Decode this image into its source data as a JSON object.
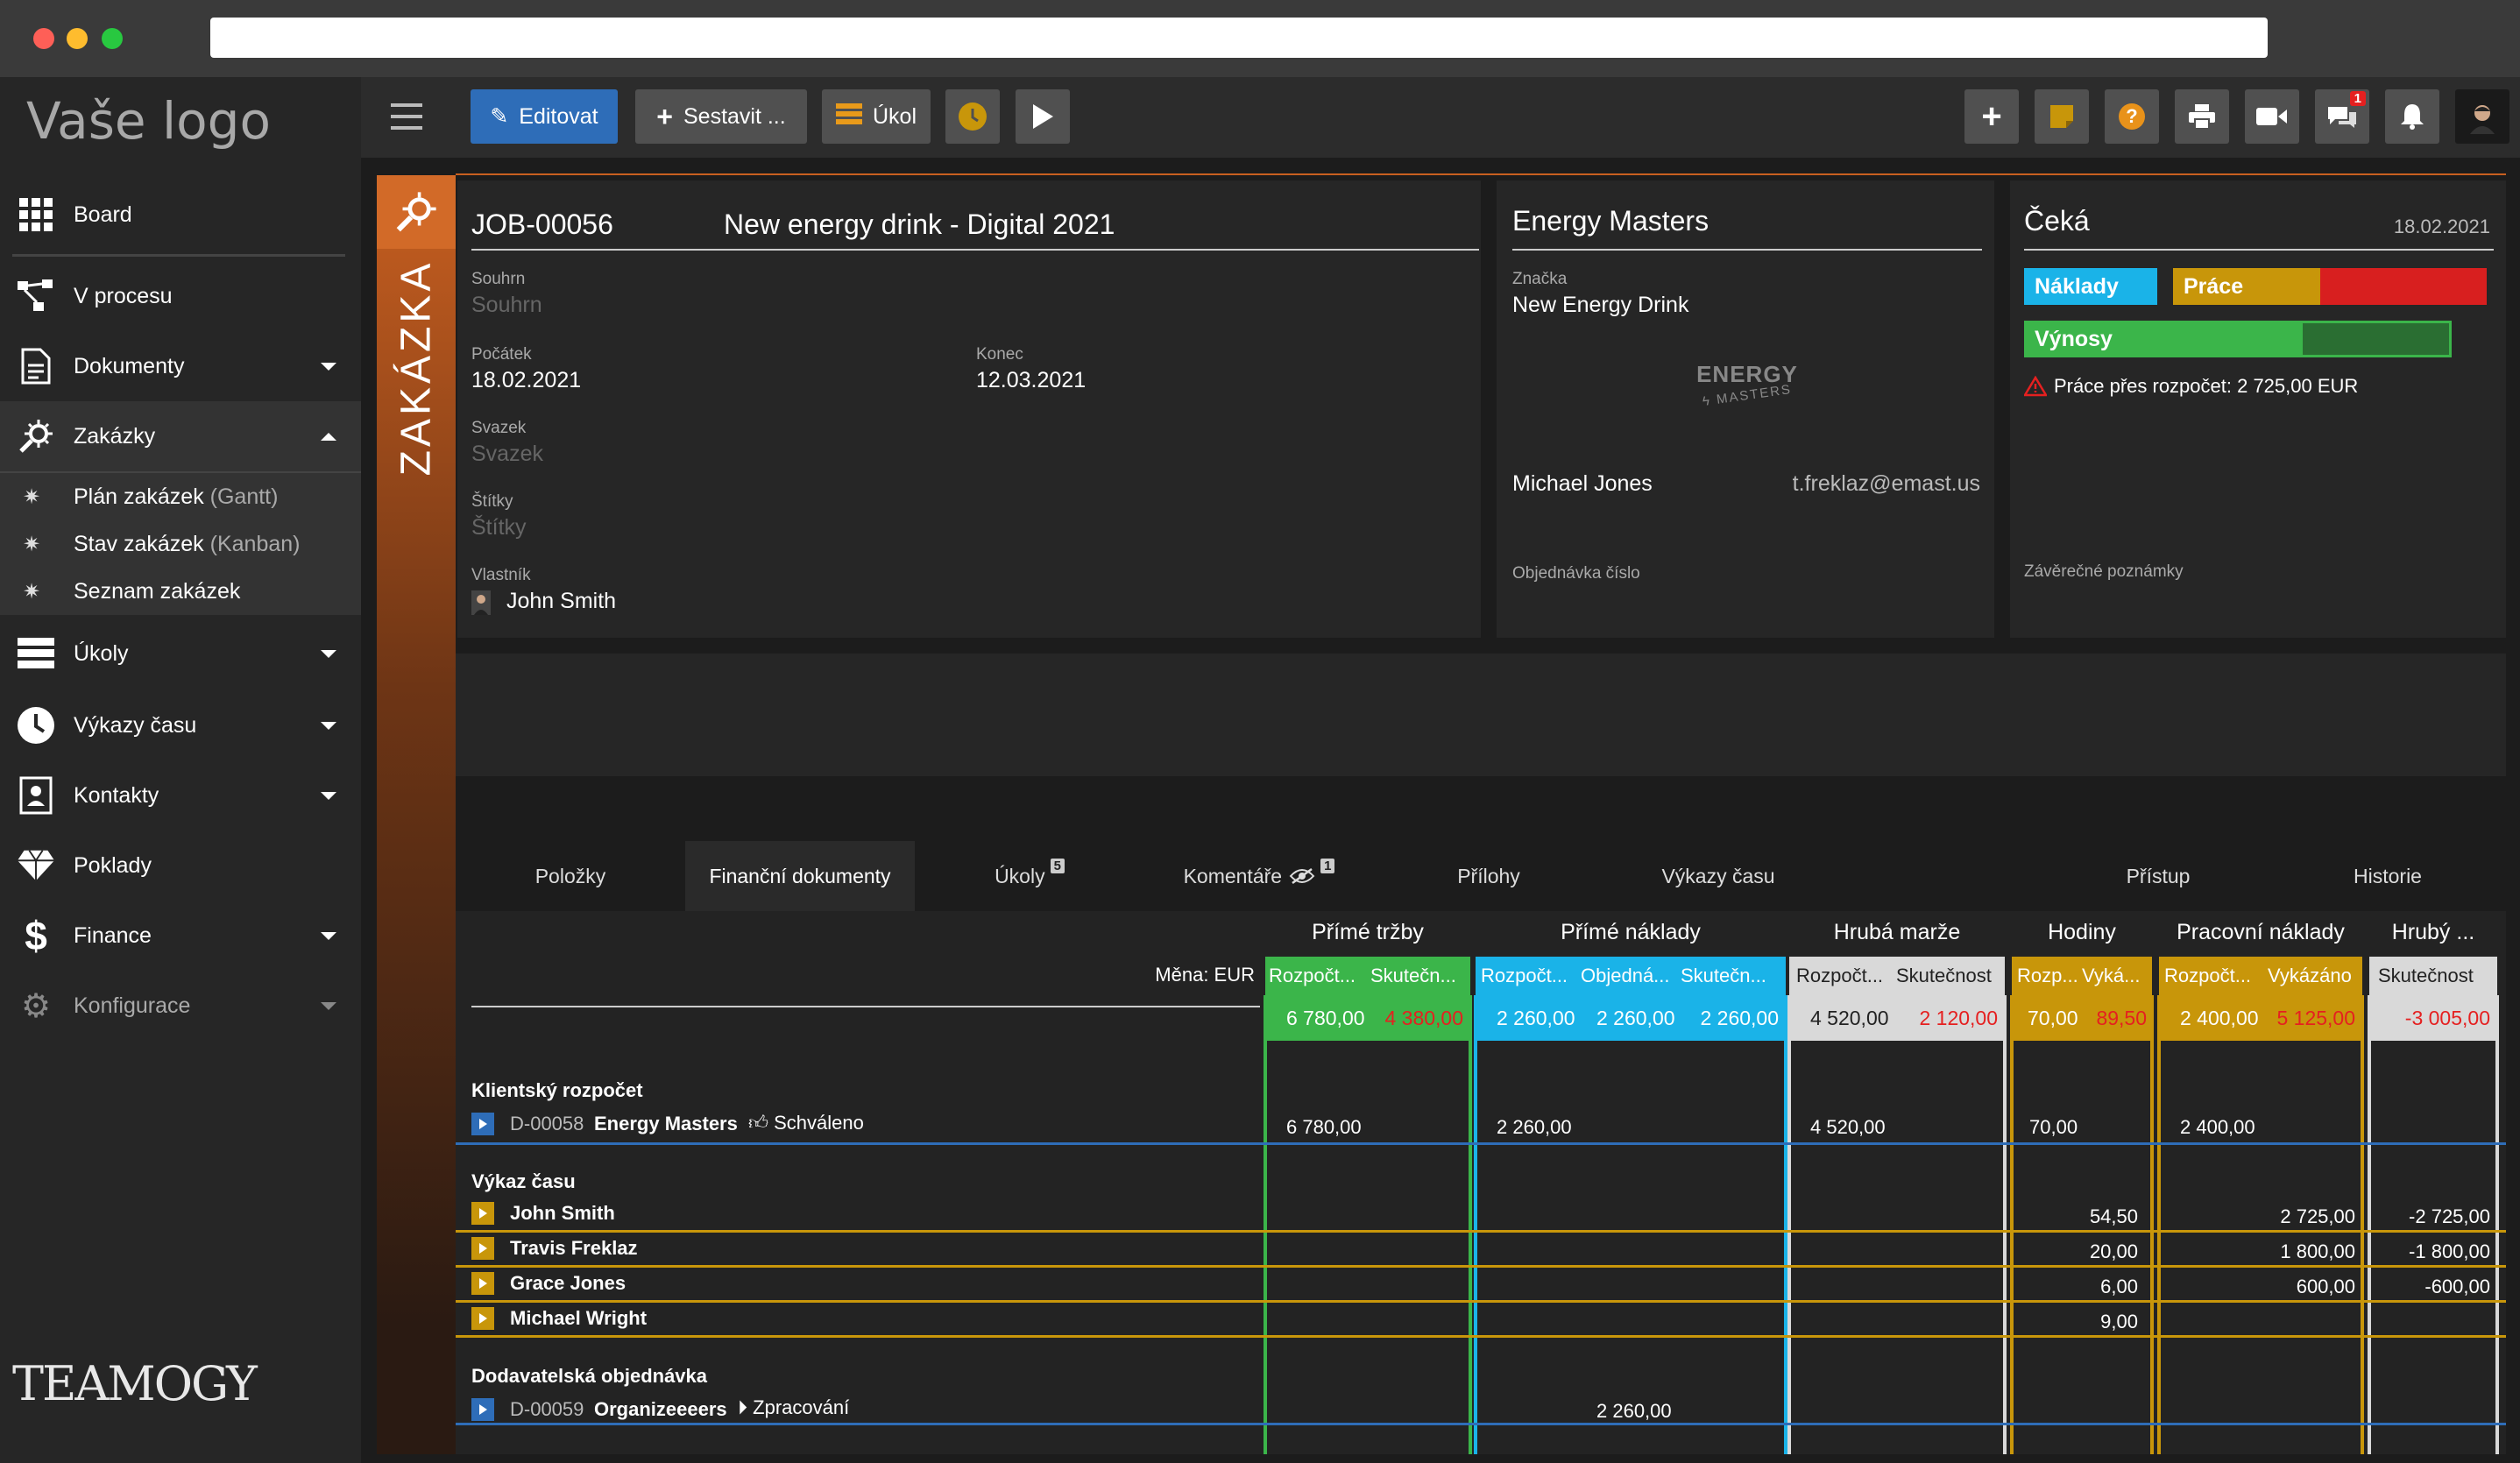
{
  "browser": {
    "title": ""
  },
  "sidebar": {
    "logo": "Vaše logo",
    "items": [
      {
        "label": "Board",
        "icon": "grid-icon"
      },
      {
        "label": "V procesu",
        "icon": "workflow-icon"
      },
      {
        "label": "Dokumenty",
        "icon": "document-icon"
      },
      {
        "label": "Zakázky",
        "icon": "jobs-icon"
      },
      {
        "label": "Úkoly",
        "icon": "tasks-icon"
      },
      {
        "label": "Výkazy času",
        "icon": "clock-icon"
      },
      {
        "label": "Kontakty",
        "icon": "contacts-icon"
      },
      {
        "label": "Poklady",
        "icon": "diamond-icon"
      },
      {
        "label": "Finance",
        "icon": "dollar-icon"
      },
      {
        "label": "Konfigurace",
        "icon": "gear-icon"
      }
    ],
    "subitems": [
      {
        "label": "Plán zakázek",
        "hint": "(Gantt)"
      },
      {
        "label": "Stav zakázek",
        "hint": "(Kanban)"
      },
      {
        "label": "Seznam zakázek",
        "hint": ""
      }
    ],
    "brand": "TEAMOGY"
  },
  "toolbar": {
    "edit": "Editovat",
    "build": "Sestavit ...",
    "task": "Úkol",
    "messages_badge": "1"
  },
  "job": {
    "strip_label": "ZAKÁZKA",
    "number": "JOB-00056",
    "name": "New energy drink - Digital 2021",
    "summary_label": "Souhrn",
    "summary_value": "Souhrn",
    "start_label": "Počátek",
    "start_value": "18.02.2021",
    "end_label": "Konec",
    "end_value": "12.03.2021",
    "bundle_label": "Svazek",
    "bundle_value": "Svazek",
    "tags_label": "Štítky",
    "tags_value": "Štítky",
    "owner_label": "Vlastník",
    "owner_value": "John Smith"
  },
  "client": {
    "name": "Energy Masters",
    "brand_label": "Značka",
    "brand_value": "New Energy Drink",
    "logo_text": "ENERGY",
    "logo_subtext": "MASTERS",
    "contact": "Michael Jones",
    "email": "t.freklaz@emast.us",
    "order_label": "Objednávka číslo"
  },
  "status": {
    "state": "Čeká",
    "date": "18.02.2021",
    "costs_label": "Náklady",
    "work_label": "Práce",
    "revenue_label": "Výnosy",
    "warning": "Práce přes rozpočet: 2 725,00 EUR",
    "notes_label": "Závěrečné poznámky",
    "colors": {
      "costs": "#1ab3e8",
      "work": "#c8960a",
      "work_over": "#d81f1f",
      "revenue": "#3bb54a",
      "revenue_dark": "#2a6e32"
    }
  },
  "tabs": [
    {
      "label": "Položky"
    },
    {
      "label": "Finanční dokumenty"
    },
    {
      "label": "Úkoly",
      "badge": "5"
    },
    {
      "label": "Komentáře",
      "badge": "1"
    },
    {
      "label": "Přílohy"
    },
    {
      "label": "Výkazy času"
    },
    {
      "label": "Přístup"
    },
    {
      "label": "Historie"
    }
  ],
  "finance": {
    "currency_label": "Měna: EUR",
    "groups": [
      {
        "label": "Přímé tržby",
        "color": "#3bb54a",
        "cols": [
          "Rozpočt...",
          "Skutečn..."
        ]
      },
      {
        "label": "Přímé náklady",
        "color": "#1ab3e8",
        "cols": [
          "Rozpočt...",
          "Objedná...",
          "Skutečn..."
        ]
      },
      {
        "label": "Hrubá marže",
        "color": "#d9d9d9",
        "cols": [
          "Rozpočt...",
          "Skutečnost"
        ]
      },
      {
        "label": "Hodiny",
        "color": "#c8960a",
        "cols": [
          "Rozp...",
          "Vyká..."
        ]
      },
      {
        "label": "Pracovní náklady",
        "color": "#c8960a",
        "cols": [
          "Rozpočt...",
          "Vykázáno"
        ]
      },
      {
        "label": "Hrubý ...",
        "color": "#d9d9d9",
        "cols": [
          "Skutečnost"
        ]
      }
    ],
    "totals": [
      "6 780,00",
      "4 380,00",
      "2 260,00",
      "2 260,00",
      "2 260,00",
      "4 520,00",
      "2 120,00",
      "70,00",
      "89,50",
      "2 400,00",
      "5 125,00",
      "-3 005,00"
    ],
    "sections": [
      {
        "title": "Klientský rozpočet",
        "rows": [
          {
            "doc": "D-00058",
            "name": "Energy Masters",
            "status": "Schváleno",
            "values": {
              "c0": "6 780,00",
              "c2": "2 260,00",
              "c5": "4 520,00",
              "c7": "70,00",
              "c9": "2 400,00"
            }
          }
        ]
      },
      {
        "title": "Výkaz času",
        "rows": [
          {
            "name": "John Smith",
            "values": {
              "c8": "54,50",
              "c10": "2 725,00",
              "c11": "-2 725,00"
            }
          },
          {
            "name": "Travis Freklaz",
            "values": {
              "c8": "20,00",
              "c10": "1 800,00",
              "c11": "-1 800,00"
            }
          },
          {
            "name": "Grace Jones",
            "values": {
              "c8": "6,00",
              "c10": "600,00",
              "c11": "-600,00"
            }
          },
          {
            "name": "Michael Wright",
            "values": {
              "c8": "9,00"
            }
          }
        ]
      },
      {
        "title": "Dodavatelská objednávka",
        "rows": [
          {
            "doc": "D-00059",
            "name": "Organizeeeers",
            "status": "Zpracování",
            "values": {
              "c3": "2 260,00"
            }
          }
        ]
      }
    ]
  }
}
